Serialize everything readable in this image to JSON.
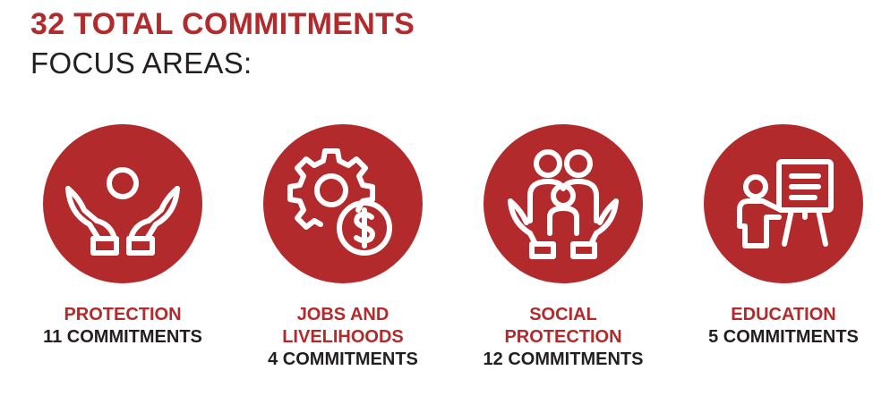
{
  "header": {
    "title": "32 TOTAL COMMITMENTS",
    "subtitle": "FOCUS AREAS:"
  },
  "areas": [
    {
      "label": "PROTECTION",
      "count": "11 COMMITMENTS",
      "icon": "hands-protecting-person-icon"
    },
    {
      "label": "JOBS AND\nLIVELIHOODS",
      "count": "4 COMMITMENTS",
      "icon": "gear-dollar-icon"
    },
    {
      "label": "SOCIAL\nPROTECTION",
      "count": "12 COMMITMENTS",
      "icon": "hands-holding-family-icon"
    },
    {
      "label": "EDUCATION",
      "count": "5 COMMITMENTS",
      "icon": "teacher-whiteboard-icon"
    }
  ],
  "colors": {
    "accent": "#b22a2b",
    "text": "#231f20",
    "icon": "#ffffff"
  }
}
